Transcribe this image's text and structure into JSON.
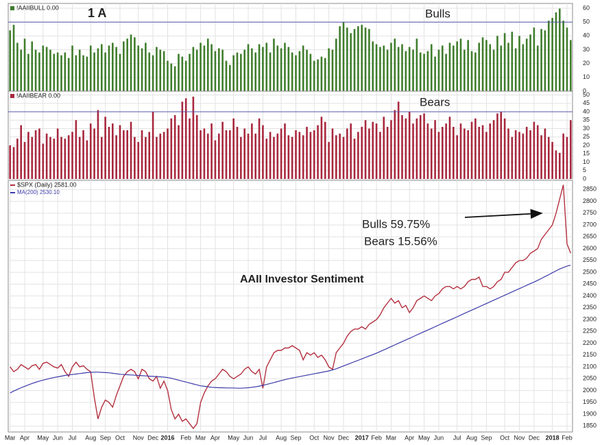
{
  "panel_label": "1 A",
  "chart_data": [
    {
      "type": "bar",
      "title": "!AAIIBULL 0.00",
      "label": "Bulls",
      "color": "#3f7d2c",
      "ref_line": 50,
      "ref_color": "#5555aa",
      "ylim": [
        0,
        62
      ],
      "yticks": [
        0,
        10,
        20,
        30,
        40,
        50,
        60
      ],
      "values": [
        44,
        48,
        35,
        30,
        38,
        27,
        36,
        30,
        28,
        33,
        32,
        30,
        27,
        28,
        26,
        28,
        24,
        33,
        26,
        30,
        26,
        25,
        33,
        28,
        31,
        34,
        28,
        33,
        35,
        32,
        27,
        36,
        38,
        41,
        39,
        33,
        31,
        35,
        28,
        26,
        32,
        30,
        29,
        22,
        20,
        18,
        27,
        25,
        22,
        27,
        32,
        30,
        35,
        33,
        38,
        34,
        29,
        31,
        30,
        22,
        19,
        26,
        28,
        27,
        30,
        34,
        31,
        28,
        34,
        32,
        35,
        28,
        38,
        33,
        31,
        35,
        32,
        28,
        26,
        29,
        33,
        30,
        27,
        22,
        23,
        25,
        24,
        31,
        30,
        38,
        47,
        50,
        46,
        42,
        45,
        47,
        48,
        46,
        45,
        36,
        34,
        32,
        33,
        30,
        35,
        38,
        32,
        34,
        29,
        32,
        30,
        38,
        28,
        27,
        29,
        34,
        25,
        30,
        33,
        27,
        35,
        33,
        36,
        38,
        30,
        37,
        29,
        28,
        35,
        39,
        37,
        34,
        30,
        40,
        33,
        42,
        35,
        43,
        31,
        40,
        34,
        38,
        41,
        46,
        33,
        45,
        44,
        51,
        53,
        57,
        59.75,
        51,
        46,
        37
      ]
    },
    {
      "type": "bar",
      "title": "!AAIIBEAR 0.00",
      "label": "Bears",
      "color": "#a8283e",
      "ref_line": 40,
      "ref_color": "#5555aa",
      "ylim": [
        0,
        51
      ],
      "yticks": [
        0,
        5,
        10,
        15,
        20,
        25,
        30,
        35,
        40,
        45,
        50
      ],
      "values": [
        20,
        19,
        24,
        32,
        22,
        28,
        25,
        29,
        30,
        21,
        27,
        25,
        24,
        30,
        25,
        24,
        26,
        28,
        35,
        25,
        29,
        23,
        33,
        30,
        41,
        25,
        37,
        31,
        33,
        26,
        32,
        29,
        29,
        34,
        25,
        22,
        29,
        25,
        28,
        40,
        25,
        27,
        28,
        30,
        36,
        38,
        32,
        46,
        48,
        36,
        49,
        38,
        29,
        30,
        27,
        33,
        23,
        27,
        34,
        29,
        29,
        36,
        31,
        25,
        30,
        27,
        33,
        27,
        36,
        32,
        24,
        28,
        25,
        27,
        30,
        33,
        26,
        25,
        29,
        28,
        26,
        31,
        28,
        29,
        32,
        37,
        34,
        22,
        30,
        26,
        27,
        25,
        30,
        33,
        24,
        28,
        31,
        35,
        30,
        34,
        33,
        28,
        37,
        31,
        35,
        41,
        46,
        38,
        36,
        40,
        33,
        36,
        38,
        39,
        33,
        30,
        35,
        28,
        31,
        33,
        37,
        31,
        26,
        33,
        30,
        29,
        34,
        36,
        31,
        32,
        28,
        33,
        35,
        39,
        40,
        36,
        30,
        25,
        29,
        28,
        27,
        31,
        29,
        34,
        32,
        26,
        30,
        25,
        22,
        17,
        15.56,
        27,
        25,
        35
      ]
    },
    {
      "type": "line",
      "title": "AAII Investor Sentiment",
      "annotations": [
        "Bulls 59.75%",
        "Bears 15.56%"
      ],
      "ylim": [
        1825,
        2880
      ],
      "yticks": [
        1850,
        1900,
        1950,
        2000,
        2050,
        2100,
        2150,
        2200,
        2250,
        2300,
        2350,
        2400,
        2450,
        2500,
        2550,
        2600,
        2650,
        2700,
        2750,
        2800,
        2850
      ],
      "categories": [
        "Mar",
        null,
        null,
        null,
        "Apr",
        null,
        null,
        null,
        null,
        "May",
        null,
        null,
        null,
        "Jun",
        null,
        null,
        null,
        "Jul",
        null,
        null,
        null,
        null,
        "Aug",
        null,
        null,
        null,
        "Sep",
        null,
        null,
        null,
        "Oct",
        null,
        null,
        null,
        null,
        "Nov",
        null,
        null,
        null,
        "Dec",
        null,
        null,
        null,
        "2016",
        null,
        null,
        null,
        null,
        "Feb",
        null,
        null,
        null,
        "Mar",
        null,
        null,
        null,
        "Apr",
        null,
        null,
        null,
        null,
        "May",
        null,
        null,
        null,
        "Jun",
        null,
        null,
        null,
        "Jul",
        null,
        null,
        null,
        null,
        "Aug",
        null,
        null,
        null,
        "Sep",
        null,
        null,
        null,
        null,
        "Oct",
        null,
        null,
        null,
        "Nov",
        null,
        null,
        null,
        "Dec",
        null,
        null,
        null,
        null,
        "2017",
        null,
        null,
        null,
        "Feb",
        null,
        null,
        null,
        "Mar",
        null,
        null,
        null,
        null,
        "Apr",
        null,
        null,
        null,
        "May",
        null,
        null,
        null,
        "Jun",
        null,
        null,
        null,
        null,
        "Jul",
        null,
        null,
        null,
        "Aug",
        null,
        null,
        null,
        "Sep",
        null,
        null,
        null,
        null,
        "Oct",
        null,
        null,
        null,
        "Nov",
        null,
        null,
        null,
        "Dec",
        null,
        null,
        null,
        null,
        "2018",
        null,
        null,
        null,
        "Feb",
        null
      ],
      "series": [
        {
          "name": "$SPX (Daily) 2581.00",
          "color": "#b3303f",
          "values": [
            2100,
            2080,
            2090,
            2110,
            2100,
            2090,
            2105,
            2110,
            2090,
            2115,
            2120,
            2110,
            2100,
            2095,
            2110,
            2080,
            2060,
            2100,
            2120,
            2100,
            2105,
            2090,
            2080,
            1970,
            1880,
            1930,
            1960,
            1950,
            1930,
            1980,
            2020,
            2060,
            2080,
            2090,
            2080,
            2050,
            2090,
            2080,
            2050,
            2040,
            2060,
            2010,
            2040,
            2000,
            1920,
            1880,
            1900,
            1870,
            1880,
            1860,
            1840,
            1860,
            1950,
            1990,
            2020,
            2040,
            2050,
            2070,
            2090,
            2080,
            2060,
            2050,
            2060,
            2070,
            2090,
            2100,
            2080,
            2070,
            2090,
            2010,
            2100,
            2130,
            2160,
            2170,
            2170,
            2180,
            2180,
            2190,
            2180,
            2170,
            2130,
            2160,
            2150,
            2160,
            2140,
            2150,
            2130,
            2100,
            2090,
            2160,
            2180,
            2200,
            2230,
            2250,
            2260,
            2260,
            2270,
            2260,
            2280,
            2290,
            2300,
            2320,
            2350,
            2370,
            2390,
            2370,
            2380,
            2350,
            2360,
            2330,
            2350,
            2380,
            2390,
            2400,
            2390,
            2380,
            2400,
            2410,
            2430,
            2440,
            2440,
            2430,
            2440,
            2430,
            2440,
            2460,
            2470,
            2470,
            2480,
            2440,
            2440,
            2430,
            2440,
            2460,
            2470,
            2500,
            2500,
            2520,
            2540,
            2550,
            2550,
            2560,
            2580,
            2590,
            2600,
            2640,
            2660,
            2680,
            2700,
            2750,
            2810,
            2870,
            2620,
            2581
          ]
        },
        {
          "name": "MA(200) 2530.10",
          "color": "#3a3aa8",
          "values": [
            1990,
            1998,
            2005,
            2012,
            2018,
            2024,
            2030,
            2035,
            2040,
            2044,
            2048,
            2052,
            2055,
            2058,
            2061,
            2064,
            2066,
            2068,
            2070,
            2072,
            2074,
            2076,
            2077,
            2078,
            2078,
            2077,
            2076,
            2075,
            2073,
            2071,
            2069,
            2068,
            2067,
            2066,
            2065,
            2064,
            2063,
            2062,
            2061,
            2060,
            2059,
            2058,
            2057,
            2055,
            2052,
            2048,
            2044,
            2040,
            2036,
            2032,
            2028,
            2024,
            2020,
            2018,
            2016,
            2014,
            2013,
            2012,
            2012,
            2011,
            2011,
            2011,
            2010,
            2010,
            2011,
            2012,
            2014,
            2016,
            2019,
            2022,
            2026,
            2030,
            2034,
            2038,
            2042,
            2046,
            2050,
            2053,
            2056,
            2059,
            2062,
            2065,
            2068,
            2071,
            2074,
            2077,
            2080,
            2083,
            2087,
            2092,
            2098,
            2104,
            2110,
            2116,
            2122,
            2128,
            2134,
            2140,
            2146,
            2152,
            2158,
            2165,
            2172,
            2179,
            2186,
            2193,
            2200,
            2207,
            2214,
            2221,
            2228,
            2235,
            2242,
            2249,
            2256,
            2263,
            2270,
            2277,
            2284,
            2291,
            2298,
            2305,
            2312,
            2319,
            2326,
            2333,
            2340,
            2347,
            2354,
            2361,
            2368,
            2375,
            2382,
            2389,
            2396,
            2403,
            2410,
            2417,
            2424,
            2431,
            2438,
            2445,
            2452,
            2459,
            2466,
            2474,
            2482,
            2490,
            2498,
            2506,
            2514,
            2520,
            2526,
            2530
          ]
        }
      ]
    }
  ]
}
